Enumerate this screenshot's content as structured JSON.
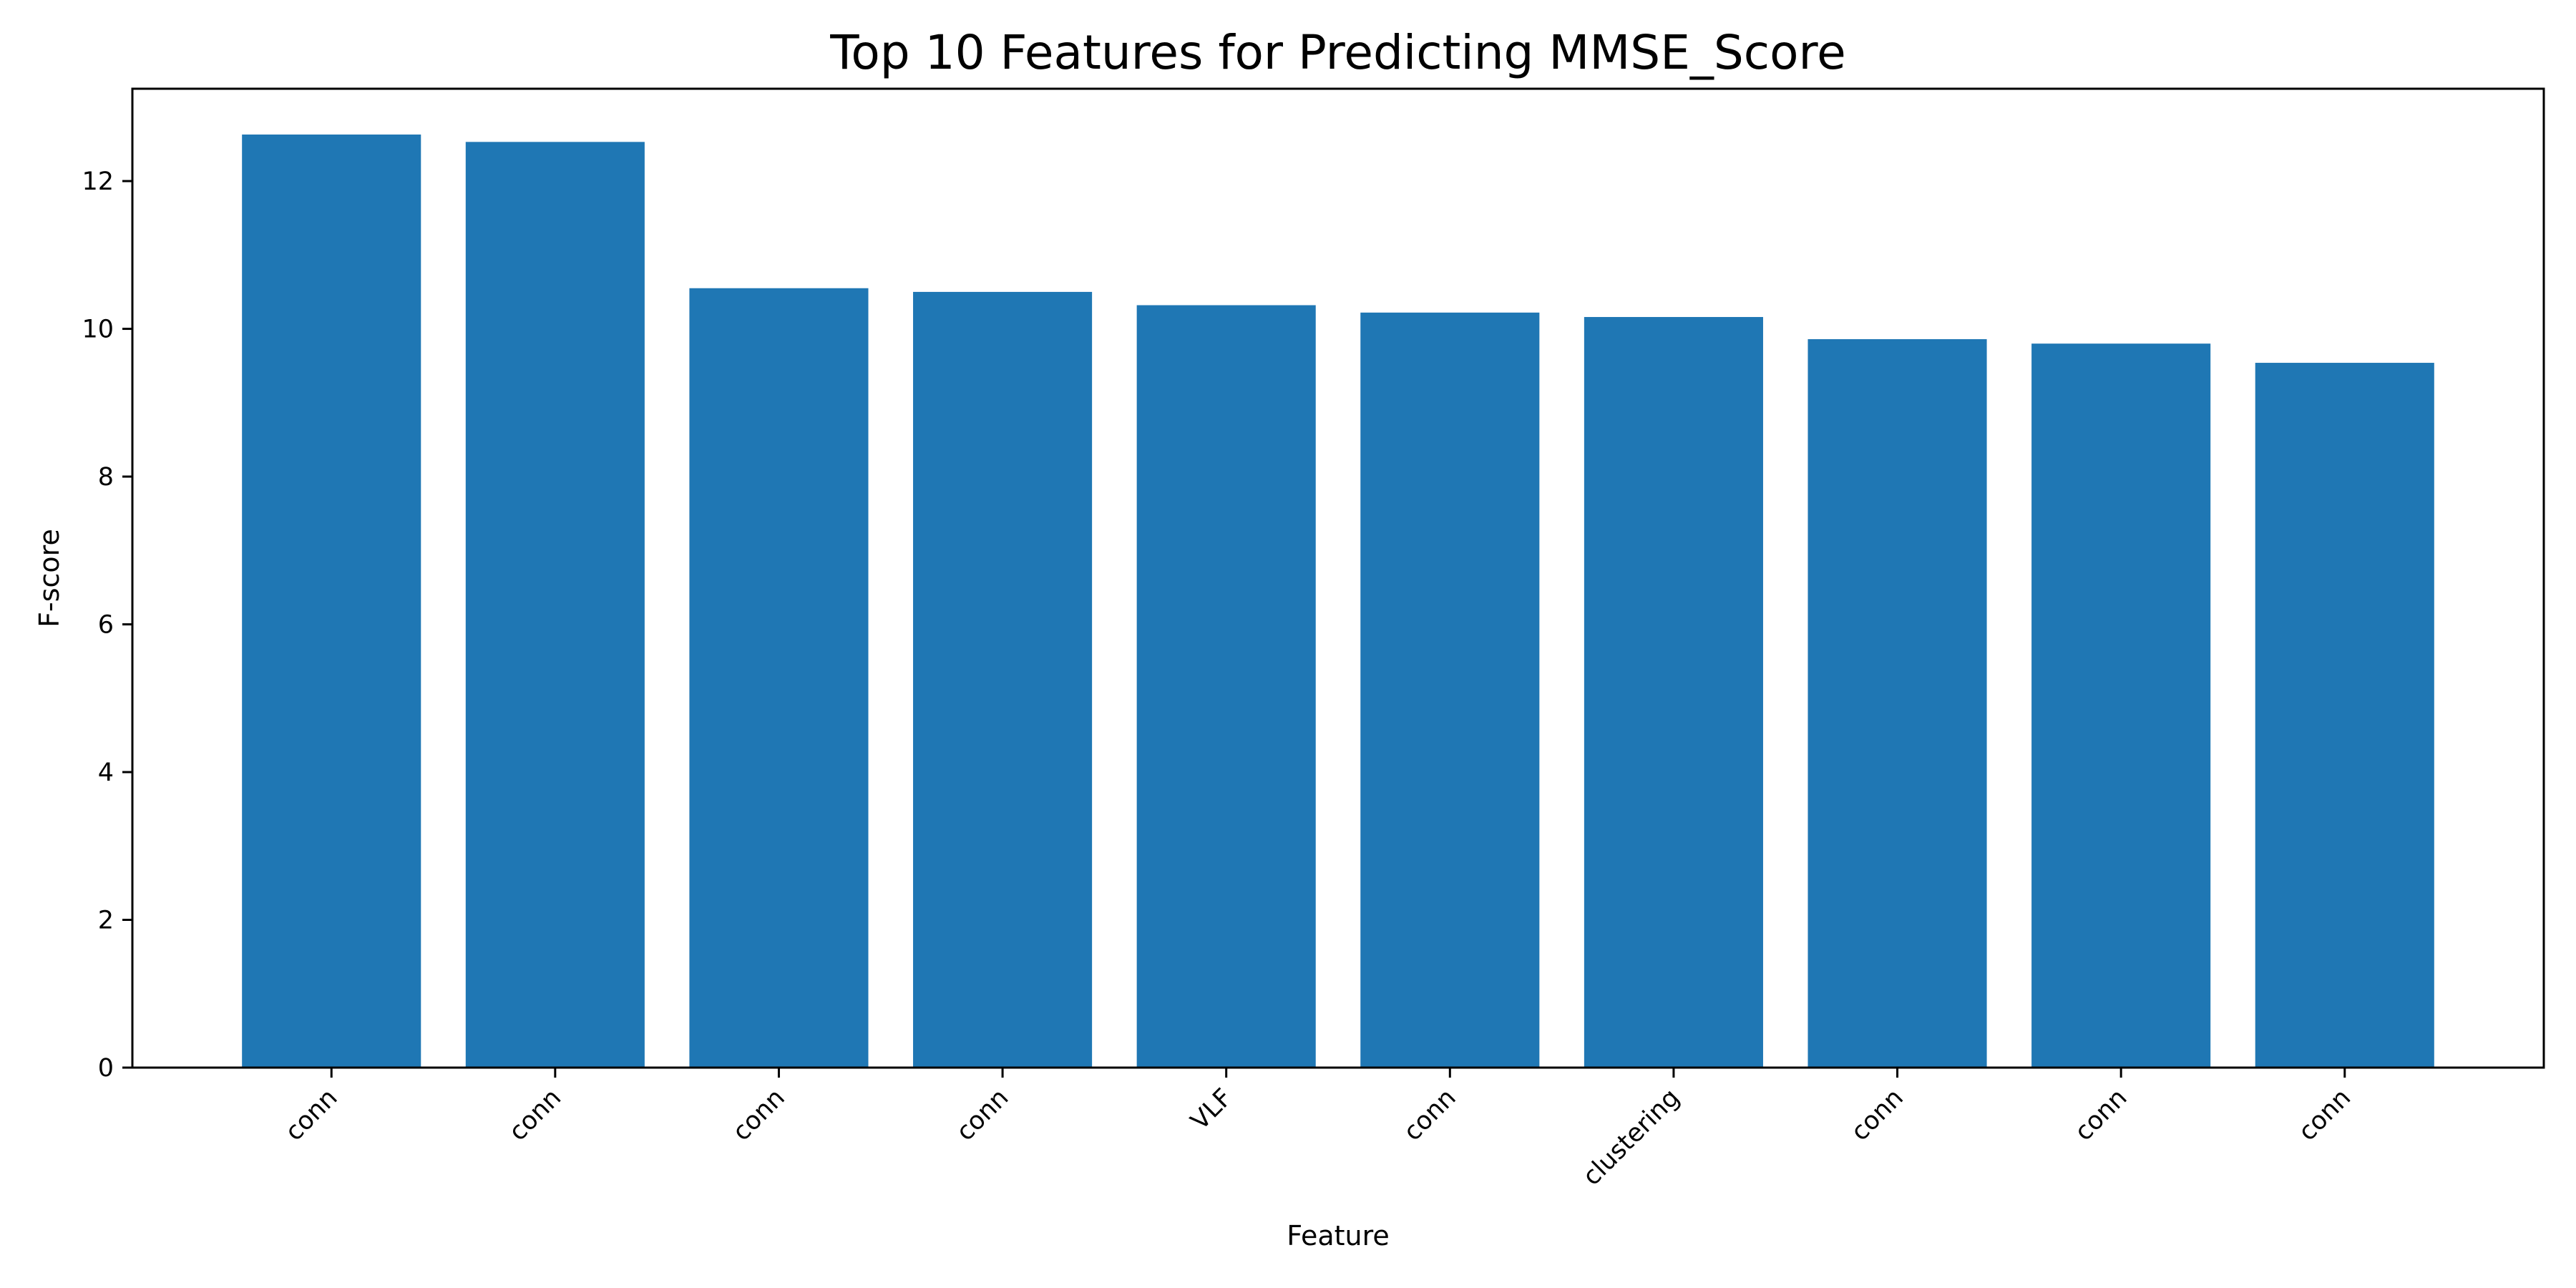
{
  "chart_data": {
    "type": "bar",
    "title": "Top 10 Features for Predicting MMSE_Score",
    "xlabel": "Feature",
    "ylabel": "F-score",
    "categories": [
      "conn",
      "conn",
      "conn",
      "conn",
      "VLF",
      "conn",
      "clustering",
      "conn",
      "conn",
      "conn"
    ],
    "values": [
      12.63,
      12.53,
      10.55,
      10.5,
      10.32,
      10.22,
      10.16,
      9.86,
      9.8,
      9.54
    ],
    "ylim": [
      0,
      13.25
    ],
    "yticks": [
      0,
      2,
      4,
      6,
      8,
      10,
      12
    ],
    "grid": false,
    "bar_color": "#1f77b4",
    "legend": null
  }
}
